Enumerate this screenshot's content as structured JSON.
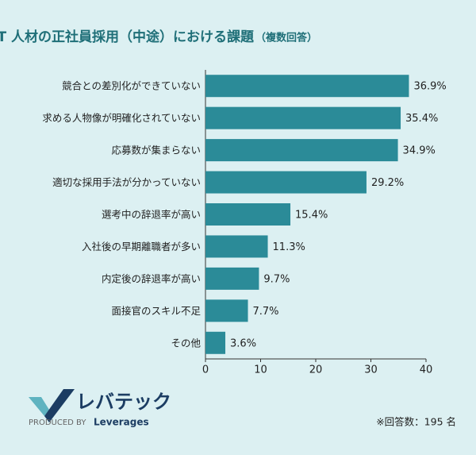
{
  "chart_data": {
    "type": "bar",
    "orientation": "horizontal",
    "title": "IT 人材の正社員採用（中途）における課題",
    "subtitle": "（複数回答）",
    "categories": [
      "競合との差別化ができていない",
      "求める人物像が明確化されていない",
      "応募数が集まらない",
      "適切な採用手法が分かっていない",
      "選考中の辞退率が高い",
      "入社後の早期離職者が多い",
      "内定後の辞退率が高い",
      "面接官のスキル不足",
      "その他"
    ],
    "values": [
      36.9,
      35.4,
      34.9,
      29.2,
      15.4,
      11.3,
      9.7,
      7.7,
      3.6
    ],
    "value_labels": [
      "36.9%",
      "35.4%",
      "34.9%",
      "29.2%",
      "15.4%",
      "11.3%",
      "9.7%",
      "7.7%",
      "3.6%"
    ],
    "color": "#2b8b98",
    "xlim": [
      0,
      40
    ],
    "xticks": [
      0,
      10,
      20,
      30,
      40
    ],
    "grid": false
  },
  "footer": {
    "logo": "レバテック",
    "produced_by": "PRODUCED BY",
    "brand": "Leverages",
    "note": "※回答数：195 名"
  }
}
